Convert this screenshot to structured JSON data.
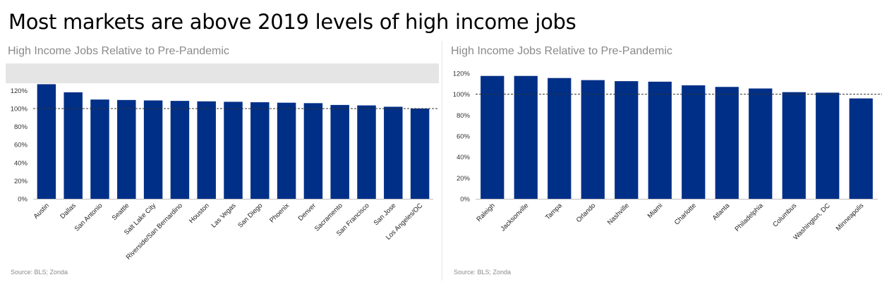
{
  "page": {
    "title": "Most markets are above 2019 levels of high income jobs"
  },
  "colors": {
    "bar": "#002f87",
    "reference_line": "#333333",
    "band": "#e5e5e5"
  },
  "chart_data": [
    {
      "type": "bar",
      "title": "High Income Jobs Relative to Pre-Pandemic",
      "source": "Source: BLS; Zonda",
      "categories": [
        "Austin",
        "Dallas",
        "San Antonio",
        "Seattle",
        "Salt Lake City",
        "Riverside/San Bernardino",
        "Houston",
        "Las Vegas",
        "San Diego",
        "Phoenix",
        "Denver",
        "Sacramento",
        "San Francisco",
        "San Jose",
        "Los Angeles/OC"
      ],
      "values": [
        127,
        118,
        110,
        109.5,
        109,
        108.5,
        108,
        107.5,
        107,
        106.5,
        106,
        104,
        103.5,
        102,
        100
      ],
      "yticks": [
        0,
        20,
        40,
        60,
        80,
        100,
        120
      ],
      "ytick_labels": [
        "0%",
        "20%",
        "40%",
        "60%",
        "80%",
        "100%",
        "120%"
      ],
      "ylim": [
        0,
        150
      ],
      "shaded_band": [
        128,
        150
      ],
      "reference_line": 100,
      "grid": false,
      "legend": "none"
    },
    {
      "type": "bar",
      "title": "High Income Jobs Relative to Pre-Pandemic",
      "source": "Source: BLS; Zonda",
      "categories": [
        "Raleigh",
        "Jacksonville",
        "Tampa",
        "Orlando",
        "Nashville",
        "Miami",
        "Charlotte",
        "Atlanta",
        "Philadelphia",
        "Columbus",
        "Washington, DC",
        "Minneapolis"
      ],
      "values": [
        117.5,
        117.5,
        115.5,
        113.5,
        112.5,
        112,
        108.5,
        107,
        105.5,
        102,
        101.5,
        96
      ],
      "yticks": [
        0,
        20,
        40,
        60,
        80,
        100,
        120
      ],
      "ytick_labels": [
        "0%",
        "20%",
        "40%",
        "60%",
        "80%",
        "100%",
        "120%"
      ],
      "ylim": [
        0,
        120
      ],
      "reference_line": 100,
      "grid": false,
      "legend": "none"
    }
  ]
}
